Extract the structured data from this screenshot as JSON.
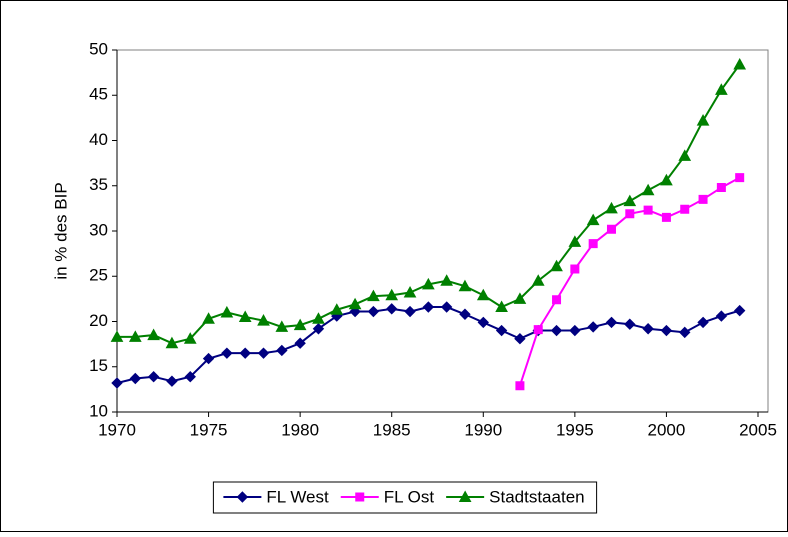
{
  "chart_data": {
    "type": "line",
    "y_label": "in % des BIP",
    "x": [
      1970,
      1971,
      1972,
      1973,
      1974,
      1975,
      1976,
      1977,
      1978,
      1979,
      1980,
      1981,
      1982,
      1983,
      1984,
      1985,
      1986,
      1987,
      1988,
      1989,
      1990,
      1991,
      1992,
      1993,
      1994,
      1995,
      1996,
      1997,
      1998,
      1999,
      2000,
      2001,
      2002,
      2003,
      2004
    ],
    "series": [
      {
        "name": "FL West",
        "color": "#000080",
        "marker": "diamond",
        "values": [
          13.2,
          13.7,
          13.9,
          13.4,
          13.9,
          15.9,
          16.5,
          16.5,
          16.5,
          16.8,
          17.6,
          19.2,
          20.6,
          21.1,
          21.1,
          21.4,
          21.1,
          21.6,
          21.6,
          20.8,
          19.9,
          19.0,
          18.1,
          19.0,
          19.0,
          19.0,
          19.4,
          19.9,
          19.7,
          19.2,
          19.0,
          18.8,
          19.9,
          20.6,
          21.2
        ]
      },
      {
        "name": "FL Ost",
        "color": "#ff00ff",
        "marker": "square",
        "values": [
          null,
          null,
          null,
          null,
          null,
          null,
          null,
          null,
          null,
          null,
          null,
          null,
          null,
          null,
          null,
          null,
          null,
          null,
          null,
          null,
          null,
          null,
          12.9,
          19.1,
          22.4,
          25.8,
          28.6,
          30.2,
          31.9,
          32.3,
          31.5,
          32.4,
          33.5,
          34.8,
          35.9
        ]
      },
      {
        "name": "Stadtstaaten",
        "color": "#008000",
        "marker": "triangle",
        "values": [
          18.3,
          18.3,
          18.5,
          17.6,
          18.1,
          20.3,
          21.0,
          20.5,
          20.1,
          19.4,
          19.6,
          20.3,
          21.3,
          21.9,
          22.8,
          22.9,
          23.2,
          24.1,
          24.5,
          23.9,
          22.9,
          21.6,
          22.5,
          24.5,
          26.1,
          28.8,
          31.2,
          32.5,
          33.3,
          34.5,
          35.6,
          38.3,
          42.2,
          45.6,
          48.4
        ]
      }
    ],
    "xlim": [
      1970,
      2005
    ],
    "xticks": [
      1970,
      1975,
      1980,
      1985,
      1990,
      1995,
      2000,
      2005
    ],
    "ylim": [
      10,
      50
    ],
    "yticks": [
      10,
      15,
      20,
      25,
      30,
      35,
      40,
      45,
      50
    ],
    "legend": "bottom"
  }
}
